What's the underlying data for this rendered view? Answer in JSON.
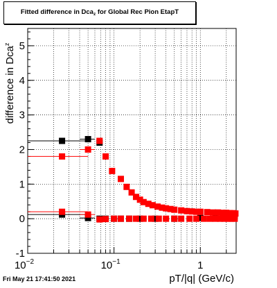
{
  "title": {
    "main": "Fitted difference in Dca",
    "subscript": "z",
    "suffix": " for Global Rec Pion EtapT"
  },
  "footer": {
    "timestamp": "Fri May 21 17:41:50 2021"
  },
  "chart_data": {
    "type": "scatter",
    "title": "Fitted difference in Dca_z for Global Rec Pion EtapT",
    "xlabel": "pT/|q| (GeV/c)",
    "ylabel": "difference in Dca_z",
    "xscale": "log",
    "xlim": [
      0.01,
      2.6
    ],
    "ylim": [
      -1,
      5.5
    ],
    "grid": true,
    "x_tick_labels": [
      "10^-2",
      "10^-1",
      "1"
    ],
    "y_tick_labels": [
      "-1",
      "0",
      "1",
      "2",
      "3",
      "4",
      "5"
    ],
    "series": [
      {
        "color": "#000000",
        "points": [
          {
            "x": 0.025,
            "y": 2.25,
            "xerr": [
              0.01,
              0.05
            ]
          },
          {
            "x": 0.05,
            "y": 2.3,
            "xerr": [
              0.04,
              0.06
            ]
          },
          {
            "x": 0.068,
            "y": 2.2
          }
        ]
      },
      {
        "color": "#000000",
        "points": [
          {
            "x": 0.025,
            "y": 0.12,
            "xerr": [
              0.01,
              0.05
            ]
          },
          {
            "x": 0.05,
            "y": 0.02,
            "xerr": [
              0.04,
              0.06
            ]
          },
          {
            "x": 0.068,
            "y": 0.0
          },
          {
            "x": 0.08,
            "y": 0.0
          },
          {
            "x": 0.1,
            "y": 0.0
          },
          {
            "x": 0.12,
            "y": 0.0
          },
          {
            "x": 0.15,
            "y": 0.0
          },
          {
            "x": 0.2,
            "y": 0.0
          },
          {
            "x": 0.3,
            "y": 0.0
          },
          {
            "x": 0.5,
            "y": 0.0
          },
          {
            "x": 1.0,
            "y": 0.02
          },
          {
            "x": 1.5,
            "y": 0.05
          },
          {
            "x": 2.0,
            "y": 0.07
          },
          {
            "x": 2.5,
            "y": 0.08
          }
        ]
      },
      {
        "color": "#ff0000",
        "points": [
          {
            "x": 0.025,
            "y": 1.8,
            "xerr": [
              0.01,
              0.05
            ]
          },
          {
            "x": 0.05,
            "y": 2.0,
            "xerr": [
              0.04,
              0.06
            ]
          },
          {
            "x": 0.068,
            "y": 2.25
          },
          {
            "x": 0.08,
            "y": 1.8
          },
          {
            "x": 0.095,
            "y": 1.38
          },
          {
            "x": 0.12,
            "y": 1.15
          },
          {
            "x": 0.14,
            "y": 0.92
          },
          {
            "x": 0.16,
            "y": 0.76
          },
          {
            "x": 0.18,
            "y": 0.63
          },
          {
            "x": 0.2,
            "y": 0.55
          },
          {
            "x": 0.22,
            "y": 0.48
          },
          {
            "x": 0.25,
            "y": 0.43
          },
          {
            "x": 0.28,
            "y": 0.39
          },
          {
            "x": 0.32,
            "y": 0.35
          },
          {
            "x": 0.36,
            "y": 0.32
          },
          {
            "x": 0.4,
            "y": 0.3
          },
          {
            "x": 0.45,
            "y": 0.28
          },
          {
            "x": 0.5,
            "y": 0.26
          },
          {
            "x": 0.6,
            "y": 0.24
          },
          {
            "x": 0.7,
            "y": 0.22
          },
          {
            "x": 0.8,
            "y": 0.21
          },
          {
            "x": 0.9,
            "y": 0.2
          },
          {
            "x": 1.0,
            "y": 0.2
          },
          {
            "x": 1.2,
            "y": 0.19
          },
          {
            "x": 1.4,
            "y": 0.18
          },
          {
            "x": 1.6,
            "y": 0.18
          },
          {
            "x": 1.8,
            "y": 0.17
          },
          {
            "x": 2.0,
            "y": 0.17
          },
          {
            "x": 2.2,
            "y": 0.16
          },
          {
            "x": 2.4,
            "y": 0.16
          },
          {
            "x": 2.55,
            "y": 0.15
          }
        ]
      },
      {
        "color": "#ff0000",
        "points": [
          {
            "x": 0.025,
            "y": 0.2,
            "xerr": [
              0.01,
              0.05
            ]
          },
          {
            "x": 0.05,
            "y": 0.12,
            "xerr": [
              0.04,
              0.06
            ]
          },
          {
            "x": 0.068,
            "y": -0.02
          },
          {
            "x": 0.08,
            "y": -0.01
          },
          {
            "x": 0.1,
            "y": 0.0
          },
          {
            "x": 0.12,
            "y": 0.0
          },
          {
            "x": 0.15,
            "y": 0.0
          },
          {
            "x": 0.18,
            "y": 0.0
          },
          {
            "x": 0.22,
            "y": 0.0
          },
          {
            "x": 0.27,
            "y": 0.0
          },
          {
            "x": 0.33,
            "y": 0.0
          },
          {
            "x": 0.4,
            "y": 0.0
          },
          {
            "x": 0.5,
            "y": 0.0
          },
          {
            "x": 0.6,
            "y": 0.0
          },
          {
            "x": 0.75,
            "y": 0.0
          },
          {
            "x": 0.9,
            "y": 0.0
          },
          {
            "x": 1.1,
            "y": 0.0
          },
          {
            "x": 1.3,
            "y": 0.0
          },
          {
            "x": 1.5,
            "y": 0.0
          },
          {
            "x": 1.7,
            "y": 0.0
          },
          {
            "x": 1.9,
            "y": 0.0
          },
          {
            "x": 2.1,
            "y": 0.0
          },
          {
            "x": 2.3,
            "y": 0.0
          },
          {
            "x": 2.5,
            "y": 0.0
          }
        ]
      }
    ]
  }
}
